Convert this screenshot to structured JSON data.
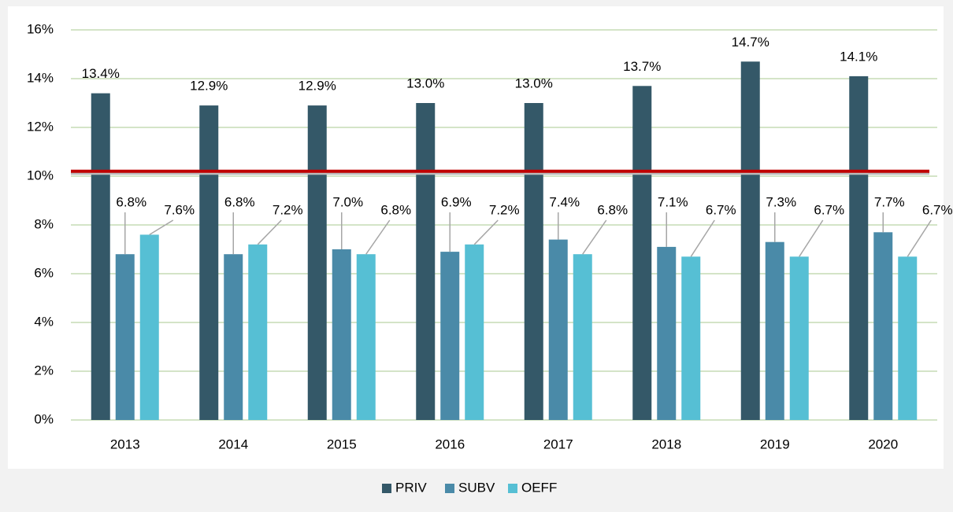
{
  "chart_data": {
    "type": "bar",
    "categories": [
      "2013",
      "2014",
      "2015",
      "2016",
      "2017",
      "2018",
      "2019",
      "2020"
    ],
    "series": [
      {
        "name": "PRIV",
        "color": "#345868",
        "values": [
          13.4,
          12.9,
          12.9,
          13.0,
          13.0,
          13.7,
          14.7,
          14.1
        ],
        "value_labels": [
          "13.4%",
          "12.9%",
          "12.9%",
          "13.0%",
          "13.0%",
          "13.7%",
          "14.7%",
          "14.1%"
        ]
      },
      {
        "name": "SUBV",
        "color": "#4a8aa8",
        "values": [
          6.8,
          6.8,
          7.0,
          6.9,
          7.4,
          7.1,
          7.3,
          7.7
        ],
        "value_labels": [
          "6.8%",
          "6.8%",
          "7.0%",
          "6.9%",
          "7.4%",
          "7.1%",
          "7.3%",
          "7.7%"
        ]
      },
      {
        "name": "OEFF",
        "color": "#56bfd4",
        "values": [
          7.6,
          7.2,
          6.8,
          7.2,
          6.8,
          6.7,
          6.7,
          6.7
        ],
        "value_labels": [
          "7.6%",
          "7.2%",
          "6.8%",
          "7.2%",
          "6.8%",
          "6.7%",
          "6.7%",
          "6.7%"
        ]
      }
    ],
    "ylim": [
      0,
      16
    ],
    "yticks": [
      {
        "value": 0,
        "label": "0%"
      },
      {
        "value": 2,
        "label": "2%"
      },
      {
        "value": 4,
        "label": "4%"
      },
      {
        "value": 6,
        "label": "6%"
      },
      {
        "value": 8,
        "label": "8%"
      },
      {
        "value": 10,
        "label": "10%"
      },
      {
        "value": 12,
        "label": "12%"
      },
      {
        "value": 14,
        "label": "14%"
      },
      {
        "value": 16,
        "label": "16%"
      }
    ],
    "grid": true,
    "reference_line": {
      "value": 10.2,
      "color": "#c00000"
    },
    "legend": "bottom"
  }
}
